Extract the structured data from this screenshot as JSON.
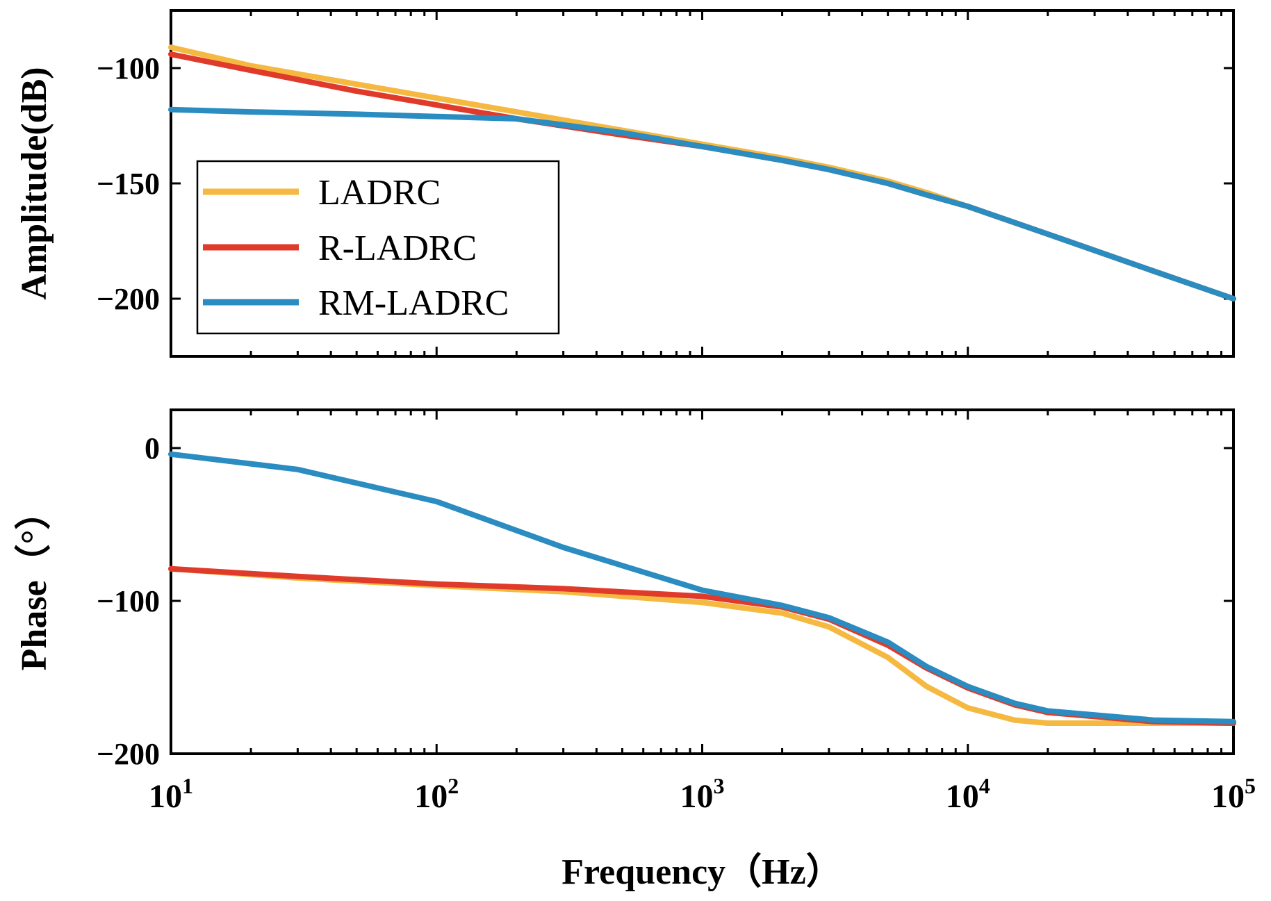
{
  "chart_data": [
    {
      "type": "line",
      "panel": "amplitude",
      "xlabel": "",
      "ylabel": "Amplitude(dB)",
      "xscale": "log",
      "xlim": [
        10,
        100000
      ],
      "ylim": [
        -225,
        -75
      ],
      "yticks": [
        -100,
        -150,
        -200
      ],
      "ytick_labels": [
        "−100",
        "−150",
        "−200"
      ],
      "legend": {
        "placement": "center-left",
        "entries": [
          "LADRC",
          "R-LADRC",
          "RM-LADRC"
        ]
      },
      "series": [
        {
          "name": "LADRC",
          "color": "#F5B942",
          "x": [
            10,
            20,
            50,
            100,
            200,
            500,
            1000,
            2000,
            3000,
            5000,
            7000,
            10000,
            20000,
            50000,
            100000
          ],
          "y": [
            -91,
            -99,
            -107,
            -113,
            -119,
            -127,
            -133,
            -139,
            -143,
            -149,
            -154,
            -160,
            -172,
            -188,
            -200
          ]
        },
        {
          "name": "R-LADRC",
          "color": "#E03A2A",
          "x": [
            10,
            20,
            50,
            100,
            200,
            500,
            1000,
            2000,
            3000,
            5000,
            7000,
            10000,
            20000,
            50000,
            100000
          ],
          "y": [
            -94,
            -101,
            -110,
            -116,
            -122,
            -129,
            -134,
            -140,
            -144,
            -150,
            -155,
            -160,
            -172,
            -188,
            -200
          ]
        },
        {
          "name": "RM-LADRC",
          "color": "#2A8CC0",
          "x": [
            10,
            20,
            50,
            100,
            200,
            500,
            1000,
            2000,
            3000,
            5000,
            7000,
            10000,
            20000,
            50000,
            100000
          ],
          "y": [
            -118,
            -119,
            -120,
            -121,
            -122,
            -128,
            -134,
            -140,
            -144,
            -150,
            -155,
            -160,
            -172,
            -188,
            -200
          ]
        }
      ]
    },
    {
      "type": "line",
      "panel": "phase",
      "xlabel": "Frequency（Hz）",
      "ylabel": "Phase（°）",
      "xscale": "log",
      "xlim": [
        10,
        100000
      ],
      "ylim": [
        -200,
        25
      ],
      "yticks": [
        0,
        -100,
        -200
      ],
      "ytick_labels": [
        "0",
        "−100",
        "−200"
      ],
      "xtick_labels": [
        {
          "base": "10",
          "exp": "1"
        },
        {
          "base": "10",
          "exp": "2"
        },
        {
          "base": "10",
          "exp": "3"
        },
        {
          "base": "10",
          "exp": "4"
        },
        {
          "base": "10",
          "exp": "5"
        }
      ],
      "series": [
        {
          "name": "LADRC",
          "color": "#F5B942",
          "x": [
            10,
            30,
            100,
            300,
            1000,
            2000,
            3000,
            5000,
            7000,
            10000,
            15000,
            20000,
            50000,
            100000
          ],
          "y": [
            -79,
            -85,
            -90,
            -94,
            -101,
            -108,
            -117,
            -137,
            -156,
            -170,
            -178,
            -180,
            -180,
            -180
          ]
        },
        {
          "name": "R-LADRC",
          "color": "#E03A2A",
          "x": [
            10,
            30,
            100,
            300,
            1000,
            2000,
            3000,
            5000,
            7000,
            10000,
            15000,
            20000,
            50000,
            100000
          ],
          "y": [
            -79,
            -84,
            -89,
            -92,
            -97,
            -104,
            -112,
            -129,
            -144,
            -157,
            -168,
            -173,
            -179,
            -180
          ]
        },
        {
          "name": "RM-LADRC",
          "color": "#2A8CC0",
          "x": [
            10,
            30,
            100,
            300,
            1000,
            2000,
            3000,
            5000,
            7000,
            10000,
            15000,
            20000,
            50000,
            100000
          ],
          "y": [
            -4,
            -14,
            -35,
            -65,
            -93,
            -103,
            -111,
            -127,
            -143,
            -156,
            -167,
            -172,
            -178,
            -179
          ]
        }
      ]
    }
  ]
}
